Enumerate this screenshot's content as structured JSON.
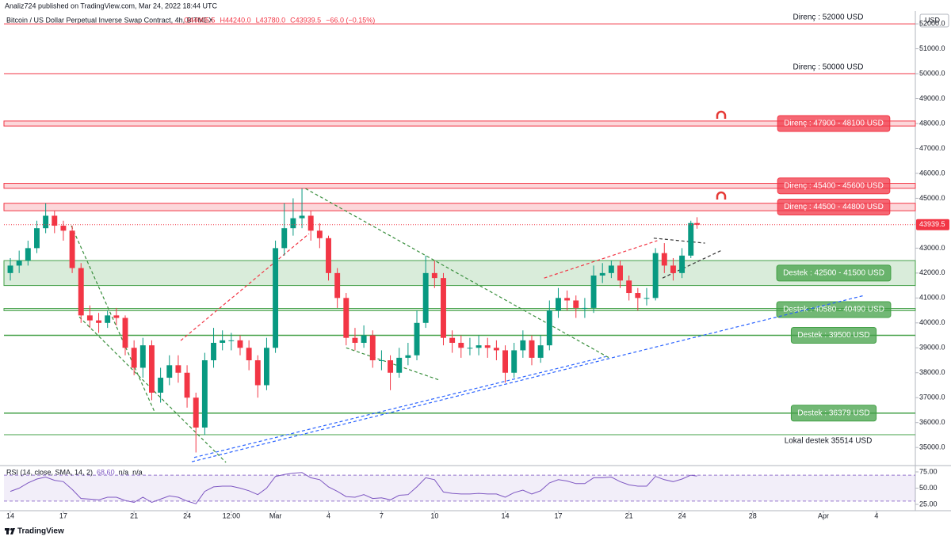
{
  "header": {
    "publisher": "Analiz724 published on TradingView.com, Mar 24, 2022 18:44 UTC"
  },
  "chart_data": {
    "type": "candlestick",
    "title": "Bitcoin / US Dollar Perpetual Inverse Swap Contract, 4h, BITMEX",
    "legend_values": [
      "O44005.5",
      "H44240.0",
      "L43780.0",
      "C43939.5",
      "−66.0 (−0.15%)"
    ],
    "currency": "USD",
    "up_color": "#089981",
    "down_color": "#f23645",
    "x": [
      0,
      0.5,
      1,
      1.5,
      2,
      2.5,
      3,
      3.5,
      4,
      4.5,
      5,
      5.5,
      6,
      6.5,
      7,
      7.5,
      8,
      8.5,
      9,
      9.5,
      10,
      10.5,
      11,
      11.5,
      12,
      12.5,
      13,
      13.5,
      14,
      14.5,
      15,
      15.5,
      16,
      16.5,
      17,
      17.5,
      18,
      18.5,
      19,
      19.5,
      20,
      20.5,
      21,
      21.5,
      22,
      22.5,
      23,
      23.5,
      24,
      24.5,
      25,
      25.5,
      26,
      26.5,
      27,
      27.5,
      28,
      28.5,
      29,
      29.5,
      30,
      30.5,
      31,
      31.5,
      32,
      32.5,
      33,
      33.5,
      34,
      34.5,
      35,
      35.5,
      36,
      36.5,
      37,
      37.5,
      38,
      38.5,
      38.85
    ],
    "candles": [
      [
        42000,
        42600,
        41700,
        42300
      ],
      [
        42300,
        42900,
        42000,
        42500
      ],
      [
        42500,
        43300,
        42300,
        43000
      ],
      [
        43000,
        44100,
        42800,
        43800
      ],
      [
        43800,
        44800,
        43600,
        44300
      ],
      [
        44300,
        44500,
        43600,
        43900
      ],
      [
        43900,
        44100,
        43300,
        43700
      ],
      [
        43700,
        43900,
        42000,
        42200
      ],
      [
        42200,
        42400,
        40000,
        40300
      ],
      [
        40300,
        40700,
        39800,
        40100
      ],
      [
        40100,
        40400,
        39600,
        40000
      ],
      [
        40000,
        40500,
        39800,
        40300
      ],
      [
        40300,
        40600,
        39900,
        40200
      ],
      [
        40200,
        40300,
        38700,
        39000
      ],
      [
        39000,
        39300,
        37900,
        38200
      ],
      [
        38200,
        39400,
        37800,
        39100
      ],
      [
        39100,
        39300,
        36900,
        37200
      ],
      [
        37200,
        38200,
        36800,
        37800
      ],
      [
        37800,
        38700,
        37500,
        38300
      ],
      [
        38300,
        38700,
        37600,
        38000
      ],
      [
        38000,
        38300,
        36600,
        37000
      ],
      [
        37000,
        37200,
        34800,
        35800
      ],
      [
        35800,
        38800,
        35500,
        38500
      ],
      [
        38500,
        39800,
        38200,
        39200
      ],
      [
        39200,
        39700,
        38900,
        39300
      ],
      [
        39300,
        39600,
        38900,
        39300
      ],
      [
        39300,
        39500,
        38700,
        39000
      ],
      [
        39000,
        39300,
        38100,
        38500
      ],
      [
        38500,
        38700,
        37000,
        37500
      ],
      [
        37500,
        39400,
        37300,
        39000
      ],
      [
        39000,
        43300,
        38800,
        43000
      ],
      [
        43000,
        44800,
        42700,
        43800
      ],
      [
        43800,
        45000,
        43500,
        44200
      ],
      [
        44200,
        45400,
        43800,
        44300
      ],
      [
        44300,
        44500,
        43300,
        43700
      ],
      [
        43700,
        44000,
        43000,
        43400
      ],
      [
        43400,
        43500,
        41700,
        42000
      ],
      [
        42000,
        42200,
        40600,
        41000
      ],
      [
        41000,
        41200,
        39100,
        39400
      ],
      [
        39400,
        39800,
        38900,
        39200
      ],
      [
        39200,
        39900,
        39000,
        39500
      ],
      [
        39500,
        39700,
        38200,
        38500
      ],
      [
        38500,
        38900,
        38100,
        38500
      ],
      [
        38500,
        38700,
        37300,
        38000
      ],
      [
        38000,
        39000,
        37800,
        38600
      ],
      [
        38600,
        39200,
        38300,
        38700
      ],
      [
        38700,
        40500,
        38500,
        40000
      ],
      [
        40000,
        42700,
        39800,
        42000
      ],
      [
        42000,
        42500,
        41400,
        41800
      ],
      [
        41800,
        42000,
        39100,
        39400
      ],
      [
        39400,
        39700,
        38800,
        39200
      ],
      [
        39200,
        39500,
        38600,
        39000
      ],
      [
        39000,
        39400,
        38700,
        39000
      ],
      [
        39000,
        39500,
        38700,
        39100
      ],
      [
        39100,
        39400,
        38600,
        39000
      ],
      [
        39000,
        39300,
        38500,
        38900
      ],
      [
        38900,
        39100,
        37600,
        38000
      ],
      [
        38000,
        39200,
        37800,
        38900
      ],
      [
        38900,
        39700,
        38600,
        39300
      ],
      [
        39300,
        39500,
        38300,
        38600
      ],
      [
        38600,
        39500,
        38400,
        39100
      ],
      [
        39100,
        40900,
        38900,
        40500
      ],
      [
        40500,
        41400,
        40200,
        41000
      ],
      [
        41000,
        41300,
        40500,
        40900
      ],
      [
        40900,
        41100,
        40200,
        40600
      ],
      [
        40600,
        41000,
        40200,
        40600
      ],
      [
        40600,
        42300,
        40400,
        41900
      ],
      [
        41900,
        42400,
        41600,
        42000
      ],
      [
        42000,
        42500,
        41800,
        42300
      ],
      [
        42300,
        42500,
        41400,
        41700
      ],
      [
        41700,
        41900,
        40900,
        41200
      ],
      [
        41200,
        41400,
        40500,
        41000
      ],
      [
        41000,
        41400,
        40700,
        41000
      ],
      [
        41000,
        43000,
        40900,
        42800
      ],
      [
        42800,
        43200,
        42000,
        42300
      ],
      [
        42300,
        42600,
        41700,
        42000
      ],
      [
        42000,
        43000,
        41800,
        42700
      ],
      [
        42700,
        44100,
        42600,
        44005.5
      ],
      [
        44005.5,
        44240,
        43780,
        43939.5
      ]
    ],
    "xlim": [
      -0.36,
      51.2
    ],
    "xticks": [
      {
        "value": 0,
        "label": "14"
      },
      {
        "value": 3,
        "label": "17"
      },
      {
        "value": 7,
        "label": "21"
      },
      {
        "value": 10,
        "label": "24"
      },
      {
        "value": 12.5,
        "label": "12:00"
      },
      {
        "value": 15,
        "label": "Mar"
      },
      {
        "value": 18,
        "label": "4"
      },
      {
        "value": 21,
        "label": "7"
      },
      {
        "value": 24,
        "label": "10"
      },
      {
        "value": 28,
        "label": "14"
      },
      {
        "value": 31,
        "label": "17"
      },
      {
        "value": 35,
        "label": "21"
      },
      {
        "value": 38,
        "label": "24"
      },
      {
        "value": 42,
        "label": "28"
      },
      {
        "value": 46,
        "label": "Apr"
      },
      {
        "value": 49,
        "label": "4"
      }
    ],
    "ylim": [
      34370,
      52480
    ],
    "yticks": [
      {
        "value": 35000,
        "label": "35000.0"
      },
      {
        "value": 36000,
        "label": "36000.0"
      },
      {
        "value": 37000,
        "label": "37000.0"
      },
      {
        "value": 38000,
        "label": "38000.0"
      },
      {
        "value": 39000,
        "label": "39000.0"
      },
      {
        "value": 40000,
        "label": "40000.0"
      },
      {
        "value": 41000,
        "label": "41000.0"
      },
      {
        "value": 42000,
        "label": "42000.0"
      },
      {
        "value": 43000,
        "label": "43000.0"
      },
      {
        "value": 44000,
        "label": "44000.0"
      },
      {
        "value": 45000,
        "label": "45000.0"
      },
      {
        "value": 46000,
        "label": "46000.0"
      },
      {
        "value": 47000,
        "label": "47000.0"
      },
      {
        "value": 48000,
        "label": "48000.0"
      },
      {
        "value": 49000,
        "label": "49000.0"
      },
      {
        "value": 50000,
        "label": "50000.0"
      },
      {
        "value": 51000,
        "label": "51000.0"
      },
      {
        "value": 52000,
        "label": "52000.0"
      }
    ],
    "last_price_color": "#f23645",
    "levels": [
      {
        "label": "Direnç : 52000 USD",
        "value": 52000,
        "color": "#f23645",
        "boxed": false
      },
      {
        "label": "Direnç : 50000 USD",
        "value": 50000,
        "color": "#f23645",
        "boxed": false
      },
      {
        "label": "Direnç : 47900 - 48100 USD",
        "range": [
          47900,
          48100
        ],
        "color": "#f23645",
        "boxed": true
      },
      {
        "label": "Direnç : 45400 - 45600 USD",
        "range": [
          45400,
          45600
        ],
        "color": "#f23645",
        "boxed": true
      },
      {
        "label": "Direnç : 44500 - 44800 USD",
        "range": [
          44500,
          44800
        ],
        "color": "#f23645",
        "boxed": true
      },
      {
        "label": "Destek : 42500 - 41500 USD",
        "range": [
          41500,
          42500
        ],
        "color": "#43a047",
        "boxed": true
      },
      {
        "label": "Destek : 40580 - 40490 USD",
        "range": [
          40490,
          40580
        ],
        "color": "#43a047",
        "boxed": true
      },
      {
        "label": "Destek : 39500 USD",
        "value": 39500,
        "color": "#43a047",
        "boxed": true
      },
      {
        "label": "Destek : 36379 USD",
        "value": 36379,
        "color": "#43a047",
        "boxed": true
      },
      {
        "label": "Lokal destek 35514 USD",
        "value": 35514,
        "color": "#43a047",
        "boxed": false
      }
    ],
    "trendlines": [
      {
        "points": [
          [
            10.27,
            34430
          ],
          [
            48.3,
            41100
          ]
        ],
        "color": "#2962ff"
      },
      {
        "points": [
          [
            10.4,
            34600
          ],
          [
            33.7,
            38650
          ]
        ],
        "color": "#2962ff"
      },
      {
        "points": [
          [
            16.7,
            45390
          ],
          [
            33.9,
            38590
          ]
        ],
        "color": "#388e3c"
      },
      {
        "points": [
          [
            3.45,
            43900
          ],
          [
            8.16,
            36430
          ]
        ],
        "color": "#388e3c"
      },
      {
        "points": [
          [
            3.9,
            40240
          ],
          [
            12.2,
            34400
          ]
        ],
        "color": "#388e3c"
      },
      {
        "points": [
          [
            19.0,
            39000
          ],
          [
            24.3,
            37700
          ]
        ],
        "color": "#388e3c"
      },
      {
        "points": [
          [
            9.64,
            39290
          ],
          [
            16.9,
            43580
          ]
        ],
        "color": "#f23645"
      },
      {
        "points": [
          [
            30.2,
            41800
          ],
          [
            36.6,
            43300
          ]
        ],
        "color": "#f23645"
      },
      {
        "points": [
          [
            36.4,
            43400
          ],
          [
            39.3,
            43200
          ]
        ],
        "color": "#333333"
      },
      {
        "points": [
          [
            36.9,
            41800
          ],
          [
            40.2,
            42900
          ]
        ],
        "color": "#333333"
      }
    ],
    "rsi": {
      "label": "RSI (14, close, SMA, 14, 2)",
      "value_label": "68.60",
      "na": [
        "n/a",
        "n/a"
      ],
      "color": "#7e57c2",
      "ylim": [
        18.9,
        82.3
      ],
      "band": [
        30,
        70
      ],
      "yticks": [
        {
          "value": 25,
          "label": "25.00"
        },
        {
          "value": 50,
          "label": "50.00"
        },
        {
          "value": 75,
          "label": "75.00"
        }
      ],
      "values": [
        45,
        50,
        58,
        64,
        67,
        62,
        60,
        48,
        34,
        33,
        32,
        36,
        36,
        31,
        28,
        36,
        28,
        33,
        38,
        36,
        30,
        26,
        45,
        52,
        53,
        53,
        50,
        46,
        40,
        50,
        68,
        71,
        73,
        74,
        66,
        63,
        52,
        45,
        37,
        36,
        40,
        34,
        35,
        32,
        39,
        40,
        52,
        66,
        63,
        44,
        42,
        41,
        41,
        42,
        41,
        41,
        36,
        43,
        47,
        41,
        46,
        58,
        63,
        61,
        57,
        57,
        66,
        66,
        67,
        60,
        55,
        53,
        53,
        68,
        63,
        60,
        64,
        70,
        68.6
      ]
    }
  },
  "footer": {
    "brand": "TradingView"
  }
}
